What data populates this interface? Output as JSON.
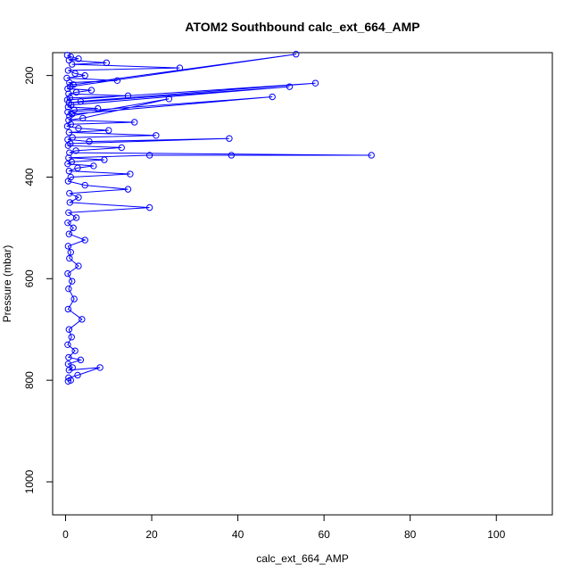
{
  "chart_data": {
    "type": "scatter",
    "title": "ATOM2 Southbound calc_ext_664_AMP",
    "xlabel": "calc_ext_664_AMP",
    "ylabel": "Pressure (mbar)",
    "xlim": [
      -3,
      113
    ],
    "ylim": [
      1065,
      155
    ],
    "y_reversed": true,
    "xticks": [
      0,
      20,
      40,
      60,
      80,
      100
    ],
    "yticks": [
      200,
      400,
      600,
      800,
      1000
    ],
    "grid": false,
    "legend": "none",
    "marker": "open-circle",
    "connect_points": true,
    "color": "#0000ff",
    "series": [
      {
        "x": [
          0.4,
          1.2,
          3.0,
          0.8,
          9.5,
          1.5,
          26.5,
          0.6,
          2.2,
          4.5,
          0.3,
          12.0,
          0.9,
          1.8,
          53.5,
          1.1,
          0.5,
          6.0,
          2.5,
          0.7,
          14.5,
          1.0,
          0.4,
          58.0,
          3.5,
          0.8,
          52.0,
          1.3,
          0.6,
          7.5,
          2.0,
          0.5,
          48.0,
          1.5,
          0.9,
          24.0,
          4.0,
          0.7,
          16.0,
          1.2,
          0.4,
          3.0,
          10.0,
          0.8,
          21.0,
          1.6,
          0.5,
          5.5,
          38.0,
          1.1,
          0.6,
          13.0,
          2.4,
          0.9,
          71.0,
          38.5,
          19.5,
          0.7,
          9.0,
          1.4,
          0.5,
          6.5,
          2.8,
          0.8,
          15.0,
          1.2,
          0.6,
          4.5,
          14.5,
          0.9,
          3.0,
          1.0,
          19.5,
          0.7,
          2.5,
          0.5,
          1.8,
          0.8,
          4.5,
          0.6,
          1.2,
          0.9,
          3.0,
          0.5,
          1.5,
          0.7,
          2.0,
          0.6,
          3.8,
          0.8,
          1.4,
          0.5,
          2.2,
          0.7,
          3.5,
          0.6,
          1.6,
          0.8,
          8.0,
          2.8,
          0.7,
          1.2,
          0.6
        ],
        "y": [
          160,
          163,
          167,
          170,
          175,
          178,
          185,
          190,
          196,
          200,
          205,
          210,
          214,
          218,
          158,
          222,
          226,
          229,
          233,
          236,
          240,
          244,
          248,
          215,
          251,
          254,
          222,
          258,
          262,
          265,
          268,
          272,
          242,
          276,
          280,
          246,
          284,
          288,
          292,
          296,
          300,
          304,
          308,
          312,
          318,
          322,
          326,
          330,
          324,
          334,
          338,
          342,
          348,
          352,
          357,
          357,
          357,
          362,
          366,
          370,
          374,
          378,
          382,
          388,
          394,
          400,
          408,
          416,
          424,
          432,
          440,
          450,
          460,
          470,
          480,
          490,
          500,
          512,
          524,
          536,
          548,
          560,
          575,
          590,
          605,
          620,
          640,
          660,
          680,
          700,
          715,
          730,
          742,
          755,
          760,
          768,
          775,
          780,
          775,
          790,
          795,
          800,
          802
        ]
      }
    ]
  }
}
